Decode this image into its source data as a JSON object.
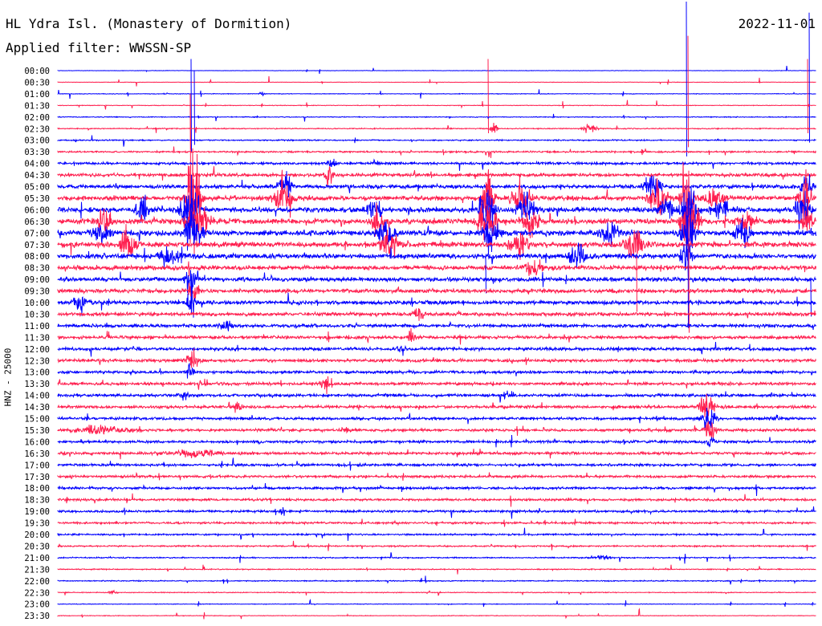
{
  "header": {
    "station": "HL Ydra Isl. (Monastery of Dormition)",
    "date": "2022-11-01",
    "filter": "Applied filter: WWSSN-SP"
  },
  "chart_data": {
    "type": "line",
    "title": "HL Ydra Isl. (Monastery of Dormition)",
    "ylabel": "HNZ - 25000",
    "xlabel": "",
    "colors": [
      "#0000ff",
      "#ff1f4f"
    ],
    "rows": [
      "00:00",
      "00:30",
      "01:00",
      "01:30",
      "02:00",
      "02:30",
      "03:00",
      "03:30",
      "04:00",
      "04:30",
      "05:00",
      "05:30",
      "06:00",
      "06:30",
      "07:00",
      "07:30",
      "08:00",
      "08:30",
      "09:00",
      "09:30",
      "10:00",
      "10:30",
      "11:00",
      "11:30",
      "12:00",
      "12:30",
      "13:00",
      "13:30",
      "14:00",
      "14:30",
      "15:00",
      "15:30",
      "16:00",
      "16:30",
      "17:00",
      "17:30",
      "18:00",
      "18:30",
      "19:00",
      "19:30",
      "20:00",
      "20:30",
      "21:00",
      "21:30",
      "22:00",
      "22:30",
      "23:00",
      "23:30"
    ],
    "noise": [
      0.2,
      0.2,
      0.3,
      0.3,
      0.4,
      0.5,
      0.6,
      0.8,
      1.2,
      1.6,
      1.8,
      2.2,
      2.4,
      2.6,
      2.6,
      2.5,
      2.4,
      2.2,
      2.0,
      1.9,
      1.8,
      1.7,
      1.6,
      1.5,
      1.5,
      1.5,
      1.4,
      1.4,
      1.4,
      1.4,
      1.3,
      1.3,
      1.3,
      1.3,
      1.2,
      1.2,
      1.2,
      1.1,
      1.1,
      1.0,
      0.8,
      0.7,
      0.6,
      0.5,
      0.5,
      0.4,
      0.3,
      0.3
    ],
    "events": [
      [
        2,
        326,
        3,
        3
      ],
      [
        5,
        616,
        6,
        4
      ],
      [
        5,
        735,
        4,
        8
      ],
      [
        8,
        412,
        6,
        5
      ],
      [
        9,
        410,
        8,
        5
      ],
      [
        10,
        355,
        12,
        8
      ],
      [
        11,
        355,
        18,
        8
      ],
      [
        11,
        350,
        8,
        10
      ],
      [
        12,
        178,
        14,
        8
      ],
      [
        13,
        130,
        16,
        8
      ],
      [
        14,
        128,
        12,
        10
      ],
      [
        15,
        158,
        16,
        10
      ],
      [
        12,
        465,
        14,
        8
      ],
      [
        13,
        470,
        14,
        8
      ],
      [
        14,
        480,
        12,
        10
      ],
      [
        15,
        485,
        14,
        10
      ],
      [
        11,
        240,
        60,
        8
      ],
      [
        12,
        238,
        30,
        10
      ],
      [
        13,
        245,
        24,
        12
      ],
      [
        14,
        240,
        22,
        10
      ],
      [
        11,
        608,
        40,
        6
      ],
      [
        12,
        606,
        30,
        8
      ],
      [
        13,
        606,
        26,
        10
      ],
      [
        14,
        610,
        20,
        8
      ],
      [
        11,
        648,
        20,
        10
      ],
      [
        12,
        655,
        16,
        10
      ],
      [
        13,
        660,
        14,
        10
      ],
      [
        15,
        645,
        12,
        10
      ],
      [
        10,
        812,
        18,
        8
      ],
      [
        11,
        820,
        16,
        10
      ],
      [
        12,
        830,
        14,
        8
      ],
      [
        11,
        855,
        60,
        6
      ],
      [
        12,
        858,
        40,
        8
      ],
      [
        13,
        860,
        30,
        10
      ],
      [
        14,
        857,
        25,
        8
      ],
      [
        16,
        855,
        20,
        6
      ],
      [
        11,
        890,
        10,
        12
      ],
      [
        12,
        900,
        8,
        12
      ],
      [
        13,
        930,
        8,
        10
      ],
      [
        14,
        925,
        14,
        8
      ],
      [
        15,
        790,
        16,
        10
      ],
      [
        16,
        720,
        14,
        10
      ],
      [
        17,
        665,
        8,
        10
      ],
      [
        14,
        760,
        10,
        12
      ],
      [
        16,
        210,
        10,
        14
      ],
      [
        10,
        1005,
        14,
        6
      ],
      [
        11,
        1003,
        30,
        6
      ],
      [
        12,
        1000,
        20,
        8
      ],
      [
        13,
        1006,
        12,
        6
      ],
      [
        18,
        236,
        16,
        6
      ],
      [
        19,
        240,
        12,
        6
      ],
      [
        20,
        100,
        8,
        8
      ],
      [
        20,
        238,
        20,
        4
      ],
      [
        21,
        520,
        8,
        6
      ],
      [
        22,
        280,
        6,
        8
      ],
      [
        23,
        512,
        8,
        4
      ],
      [
        24,
        500,
        5,
        6
      ],
      [
        25,
        240,
        8,
        8
      ],
      [
        26,
        236,
        8,
        4
      ],
      [
        27,
        405,
        8,
        6
      ],
      [
        28,
        230,
        6,
        5
      ],
      [
        28,
        632,
        5,
        6
      ],
      [
        29,
        296,
        6,
        4
      ],
      [
        29,
        880,
        16,
        8
      ],
      [
        30,
        882,
        12,
        8
      ],
      [
        31,
        884,
        10,
        6
      ],
      [
        32,
        885,
        8,
        4
      ],
      [
        30,
        965,
        4,
        4
      ],
      [
        31,
        125,
        4,
        28
      ],
      [
        31,
        430,
        4,
        4
      ],
      [
        33,
        240,
        3,
        30
      ],
      [
        38,
        352,
        5,
        3
      ],
      [
        42,
        750,
        3,
        8
      ],
      [
        45,
        140,
        4,
        4
      ]
    ],
    "spikes": [
      [
        2,
        [
          [
            855,
            9
          ],
          [
            1008,
            7
          ]
        ]
      ],
      [
        3,
        [
          [
            857,
            6
          ],
          [
            608,
            4
          ],
          [
            1006,
            4
          ]
        ]
      ],
      [
        4,
        [
          [
            238,
            5
          ],
          [
            242,
            4
          ]
        ]
      ],
      [
        5,
        [
          [
            237,
            3
          ]
        ]
      ],
      [
        7,
        [
          [
            237,
            5
          ]
        ]
      ],
      [
        18,
        [
          [
            857,
            7
          ],
          [
            605,
            2
          ]
        ]
      ],
      [
        19,
        [
          [
            858,
            6
          ],
          [
            793,
            3
          ]
        ]
      ],
      [
        20,
        [
          [
            1010,
            2
          ]
        ]
      ]
    ]
  }
}
